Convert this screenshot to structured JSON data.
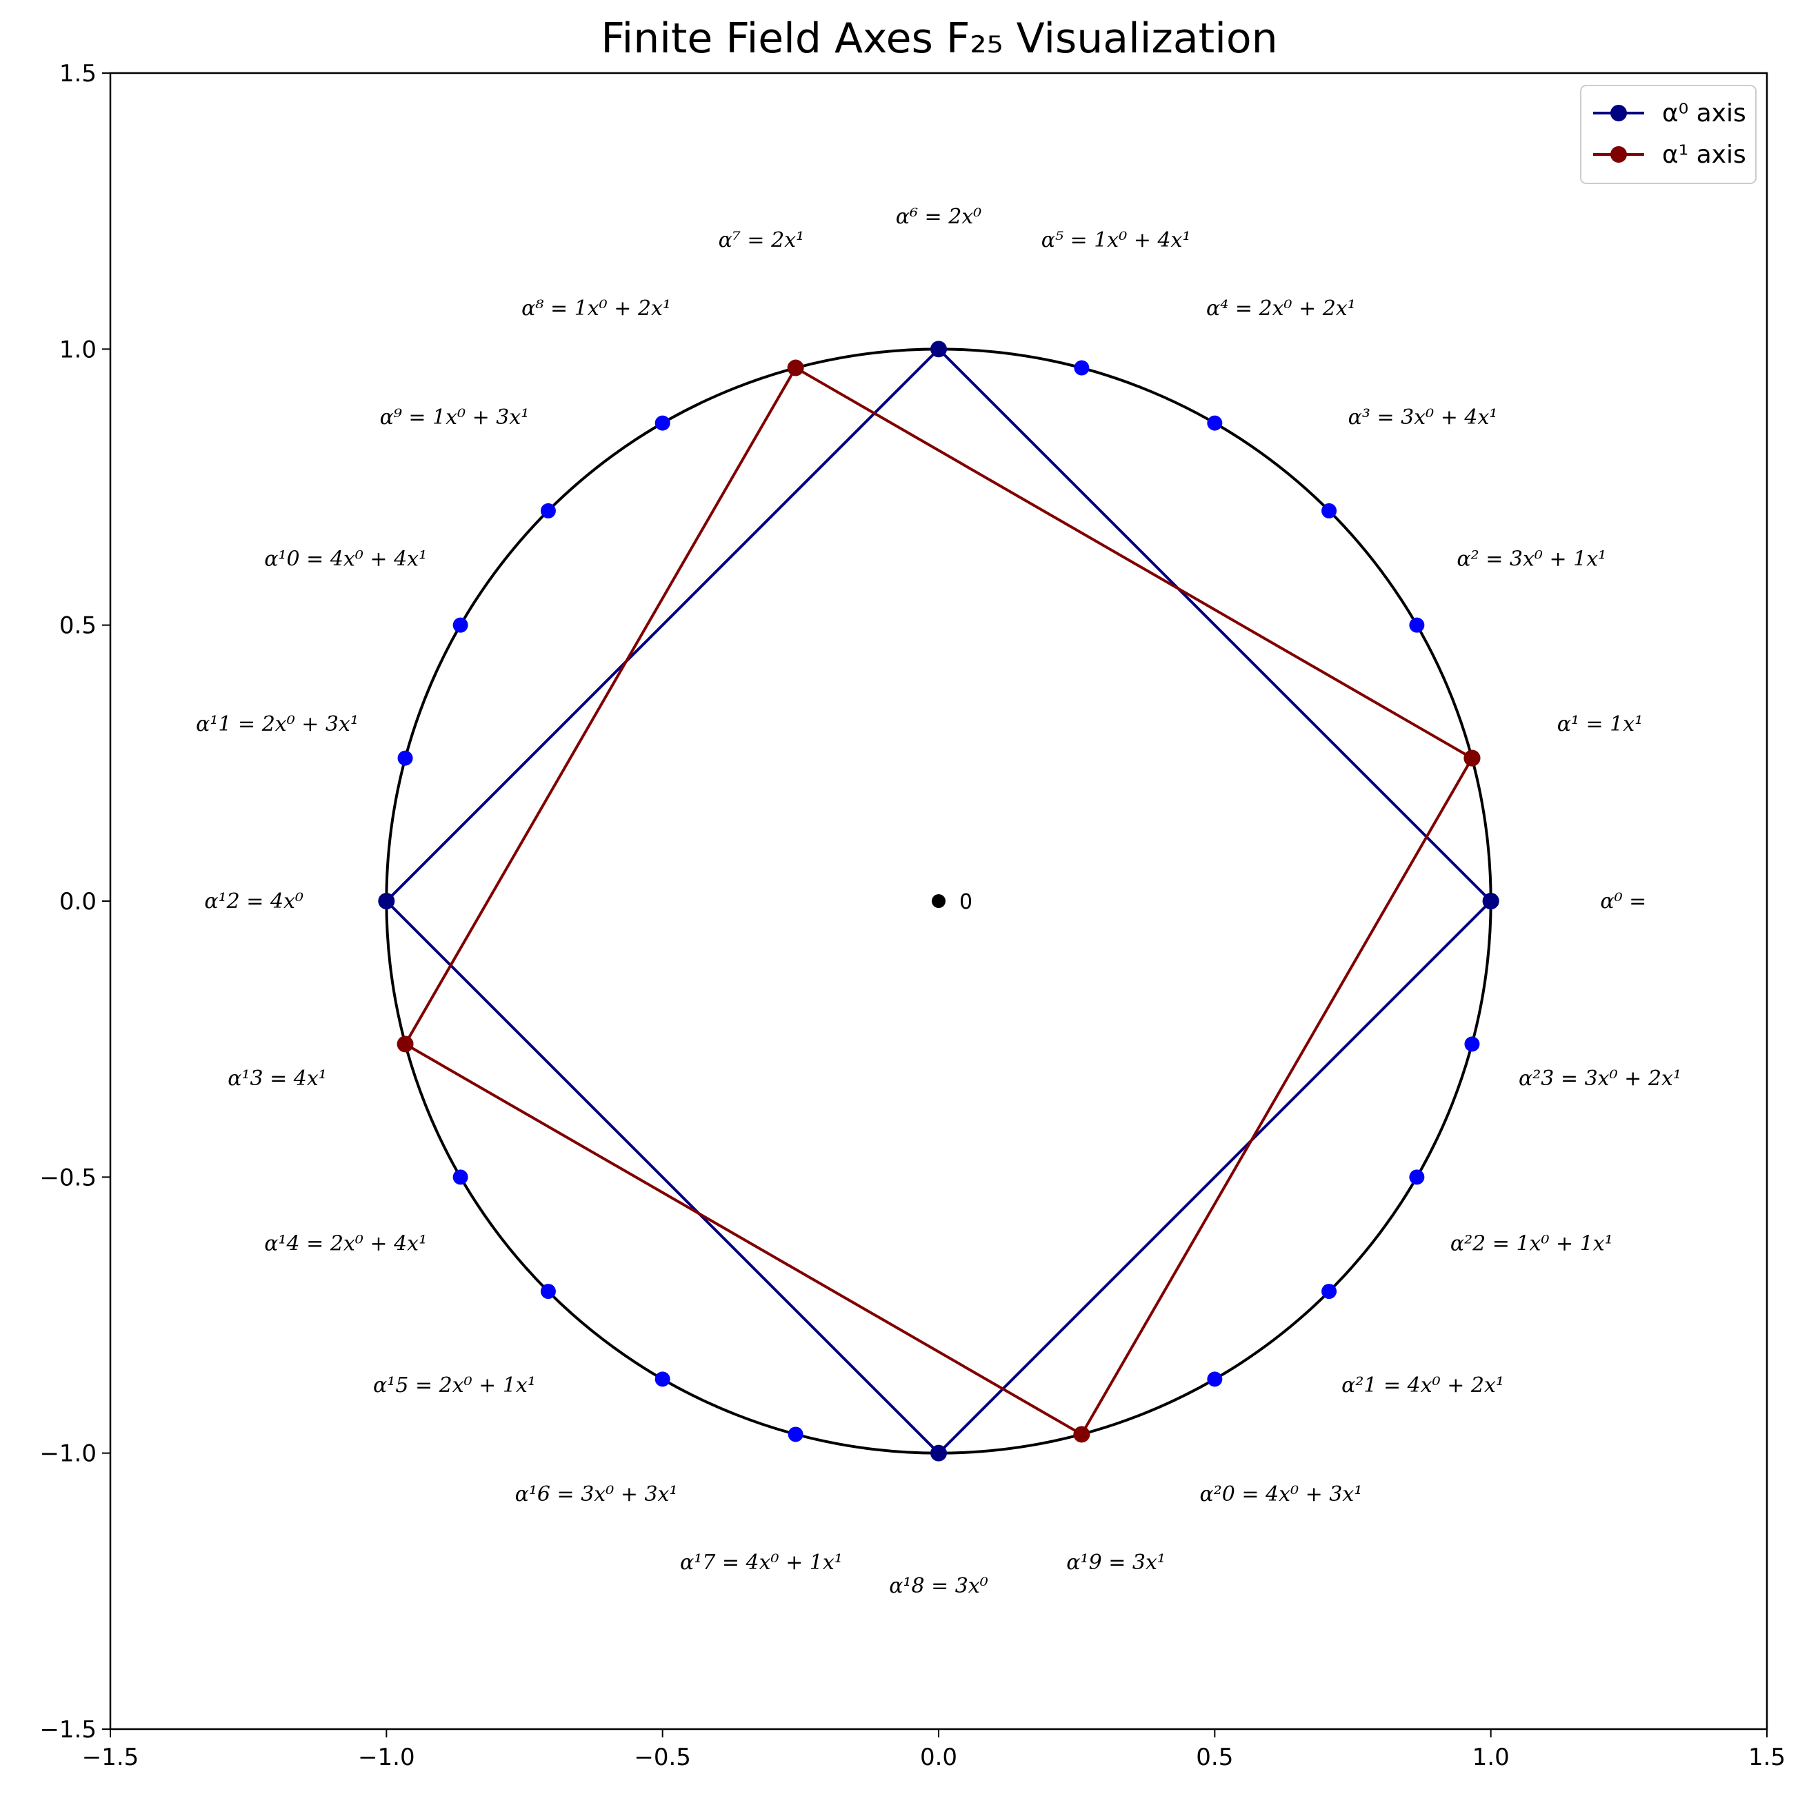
{
  "chart_data": {
    "type": "scatter",
    "title": "Finite Field Axes F₂₅ Visualization",
    "xlabel": "",
    "ylabel": "",
    "xlim": [
      -1.5,
      1.5
    ],
    "ylim": [
      -1.5,
      1.5
    ],
    "grid": false,
    "legend_position": "top-right",
    "x_ticks": [
      "−1.5",
      "−1.0",
      "−0.5",
      "0.0",
      "0.5",
      "1.0",
      "1.5"
    ],
    "y_ticks": [
      "−1.5",
      "−1.0",
      "−0.5",
      "0.0",
      "0.5",
      "1.0",
      "1.5"
    ],
    "circle": {
      "center": [
        0,
        0
      ],
      "radius": 1,
      "color": "#000000"
    },
    "origin": {
      "x": 0,
      "y": 0,
      "label": "0"
    },
    "points": [
      {
        "x": 1.0,
        "y": 0.0,
        "label": "α⁰ ="
      },
      {
        "x": 0.966,
        "y": 0.259,
        "label": "α¹ = 1x¹"
      },
      {
        "x": 0.866,
        "y": 0.5,
        "label": "α² = 3x⁰ + 1x¹"
      },
      {
        "x": 0.707,
        "y": 0.707,
        "label": "α³ = 3x⁰ + 4x¹"
      },
      {
        "x": 0.5,
        "y": 0.866,
        "label": "α⁴ = 2x⁰ + 2x¹"
      },
      {
        "x": 0.259,
        "y": 0.966,
        "label": "α⁵ = 1x⁰ + 4x¹"
      },
      {
        "x": 0.0,
        "y": 1.0,
        "label": "α⁶ = 2x⁰"
      },
      {
        "x": -0.259,
        "y": 0.966,
        "label": "α⁷ = 2x¹"
      },
      {
        "x": -0.5,
        "y": 0.866,
        "label": "α⁸ = 1x⁰ + 2x¹"
      },
      {
        "x": -0.707,
        "y": 0.707,
        "label": "α⁹ = 1x⁰ + 3x¹"
      },
      {
        "x": -0.866,
        "y": 0.5,
        "label": "α¹0 = 4x⁰ + 4x¹"
      },
      {
        "x": -0.966,
        "y": 0.259,
        "label": "α¹1 = 2x⁰ + 3x¹"
      },
      {
        "x": -1.0,
        "y": 0.0,
        "label": "α¹2 = 4x⁰"
      },
      {
        "x": -0.966,
        "y": -0.259,
        "label": "α¹3 = 4x¹"
      },
      {
        "x": -0.866,
        "y": -0.5,
        "label": "α¹4 = 2x⁰ + 4x¹"
      },
      {
        "x": -0.707,
        "y": -0.707,
        "label": "α¹5 = 2x⁰ + 1x¹"
      },
      {
        "x": -0.5,
        "y": -0.866,
        "label": "α¹6 = 3x⁰ + 3x¹"
      },
      {
        "x": -0.259,
        "y": -0.966,
        "label": "α¹7 = 4x⁰ + 1x¹"
      },
      {
        "x": 0.0,
        "y": -1.0,
        "label": "α¹8 = 3x⁰"
      },
      {
        "x": 0.259,
        "y": -0.966,
        "label": "α¹9 = 3x¹"
      },
      {
        "x": 0.5,
        "y": -0.866,
        "label": "α²0 = 4x⁰ + 3x¹"
      },
      {
        "x": 0.707,
        "y": -0.707,
        "label": "α²1 = 4x⁰ + 2x¹"
      },
      {
        "x": 0.866,
        "y": -0.5,
        "label": "α²2 = 1x⁰ + 1x¹"
      },
      {
        "x": 0.966,
        "y": -0.259,
        "label": "α²3 = 3x⁰ + 2x¹"
      }
    ],
    "point_color": "#0000ff",
    "series": [
      {
        "name": "α⁰ axis",
        "color": "#000080",
        "x": [
          1.0,
          0.0,
          -1.0,
          0.0,
          1.0
        ],
        "y": [
          0.0,
          1.0,
          0.0,
          -1.0,
          0.0
        ]
      },
      {
        "name": "α¹ axis",
        "color": "#800000",
        "x": [
          0.966,
          -0.259,
          -0.966,
          0.259,
          0.966
        ],
        "y": [
          0.259,
          0.966,
          -0.259,
          -0.966,
          0.259
        ]
      }
    ]
  }
}
